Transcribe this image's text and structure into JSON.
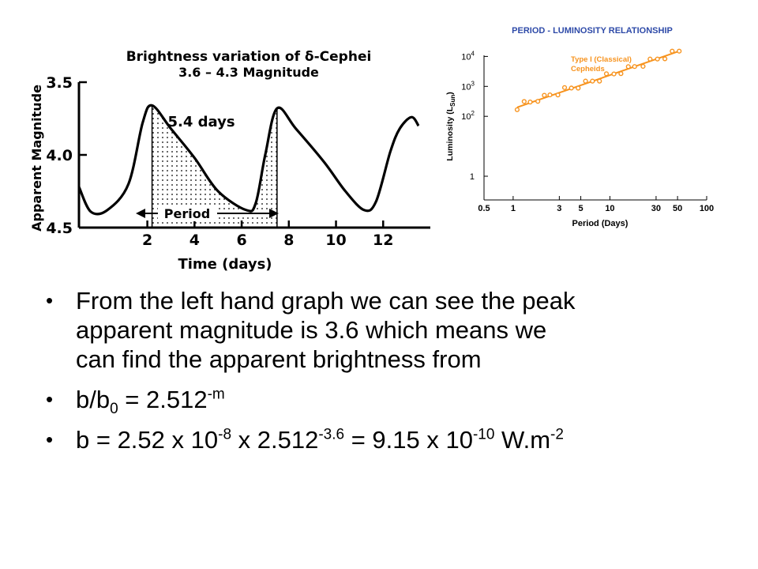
{
  "colors": {
    "orange": "#f7931e",
    "blue": "#2e4aa8",
    "black": "#000000",
    "red": "#d00000"
  },
  "chart_data": [
    {
      "type": "line",
      "title": "Brightness variation of δ-Cephei",
      "subtitle": "3.6 – 4.3 Magnitude",
      "xlabel": "Time (days)",
      "ylabel": "Apparent Magnitude",
      "xlim": [
        -0.9,
        14
      ],
      "ylim": [
        3.5,
        4.5
      ],
      "y_reversed": true,
      "x_ticks": [
        "2",
        "4",
        "6",
        "8",
        "10",
        "12"
      ],
      "y_ticks": [
        "3.5",
        "4.0",
        "4.5"
      ],
      "annotations": [
        "5.4 days",
        "Period"
      ],
      "period_span": [
        2.1,
        7.5
      ],
      "series": [
        {
          "x": [
            -0.9,
            -0.4,
            0.3,
            1.2,
            1.8,
            2.2,
            3.0,
            4.0,
            5.0,
            6.2,
            6.6,
            7.0,
            7.5,
            8.3,
            9.5,
            10.4,
            11.2,
            11.7,
            12.3,
            12.7,
            13.2,
            13.5
          ],
          "y": [
            4.22,
            4.39,
            4.38,
            4.2,
            3.78,
            3.66,
            3.82,
            4.02,
            4.25,
            4.38,
            4.33,
            4.0,
            3.68,
            3.82,
            4.05,
            4.25,
            4.38,
            4.32,
            3.98,
            3.82,
            3.74,
            3.8
          ]
        }
      ]
    },
    {
      "type": "scatter",
      "title": "PERIOD - LUMINOSITY RELATIONSHIP",
      "xlabel": "Period (Days)",
      "ylabel": "Luminosity (L",
      "ylabel_sub": "Sun",
      "ylabel_close": ")",
      "x_scale": "log",
      "y_scale": "log",
      "xlim": [
        0.5,
        100
      ],
      "ylim": [
        1,
        10000
      ],
      "x_ticks": [
        "0.5",
        "1",
        "3",
        "5",
        "10",
        "30",
        "50",
        "100"
      ],
      "y_ticks": [
        "1",
        "10",
        "10",
        "10"
      ],
      "y_tick_exps": [
        "",
        "2",
        "3",
        "4"
      ],
      "grid": false,
      "series": [
        {
          "name": "Type I (Classical) Cepheids",
          "color": "#f7931e",
          "x": [
            1.1,
            1.3,
            1.5,
            1.8,
            2.1,
            2.4,
            2.9,
            3.4,
            4.0,
            4.7,
            5.6,
            6.6,
            7.8,
            9.2,
            11,
            13,
            15.5,
            18,
            22,
            26,
            31,
            37,
            44,
            52
          ],
          "y": [
            200,
            260,
            300,
            380,
            420,
            520,
            620,
            760,
            880,
            1050,
            1250,
            1500,
            1800,
            2200,
            2600,
            3200,
            3800,
            4600,
            5600,
            6800,
            8200,
            10000,
            12500,
            15000
          ]
        }
      ]
    }
  ],
  "bullets": {
    "b1": {
      "dot": "•",
      "l1": "From the left hand graph we can see the peak",
      "l2": "apparent magnitude is 3.6 which means we",
      "l3": "can find the apparent brightness from"
    },
    "b2": {
      "dot": "•",
      "t1": "b/b",
      "sub": "0",
      "t2": " = 2.512",
      "sup": "-m"
    },
    "b3": {
      "dot": "•",
      "t1": "b = 2.52 x 10",
      "s1": "-8",
      "t2": " x 2.512",
      "s2": "-3.6",
      "t3": " = 9.15 x 10",
      "s3": "-10",
      "t4": " W.m",
      "s4": "-2"
    }
  }
}
